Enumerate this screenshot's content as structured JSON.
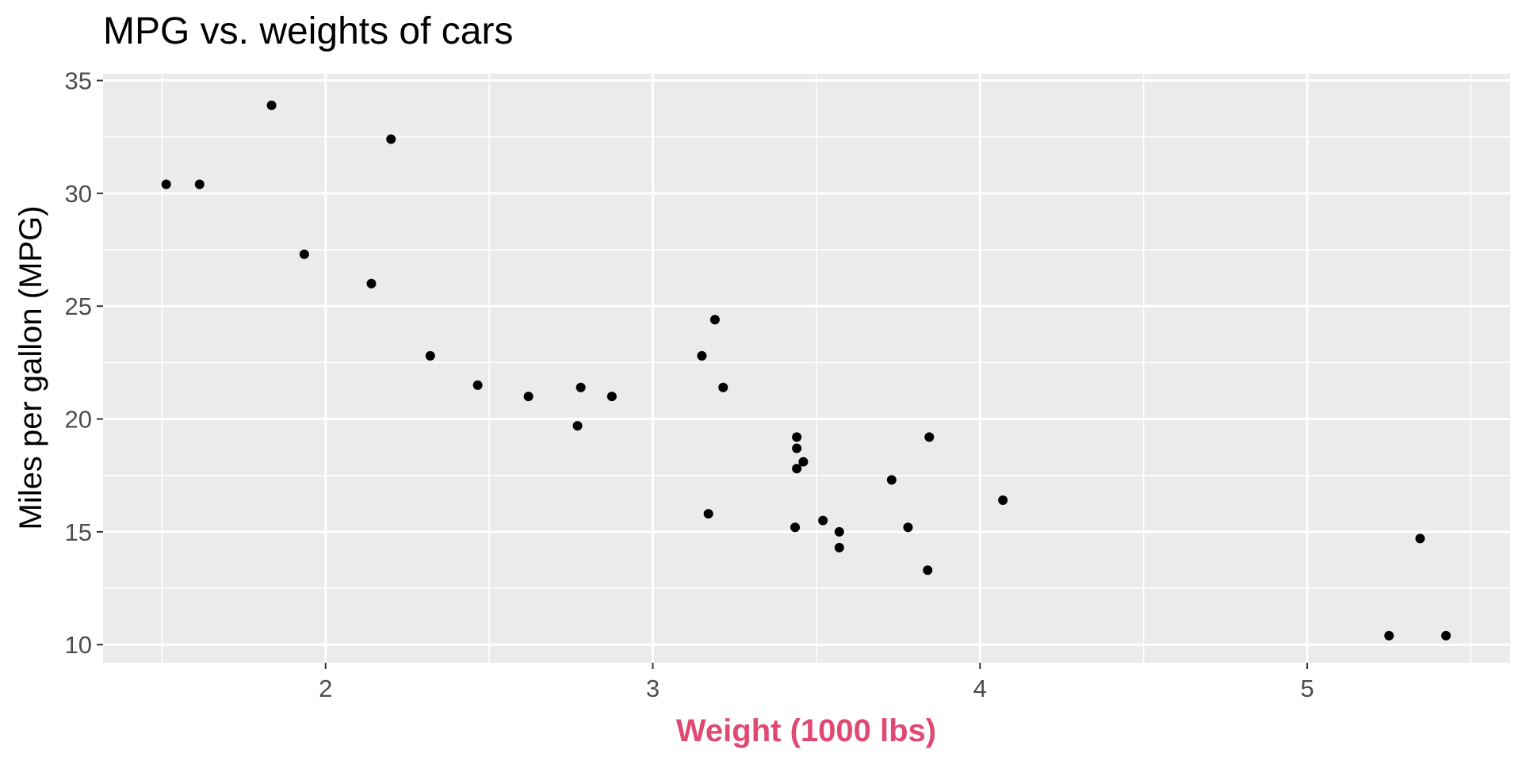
{
  "chart_data": {
    "type": "scatter",
    "title": "MPG vs. weights of cars",
    "xlabel": "Weight (1000 lbs)",
    "ylabel": "Miles per gallon (MPG)",
    "xlim": [
      1.32,
      5.62
    ],
    "ylim": [
      9.2,
      35.3
    ],
    "x_ticks": [
      2,
      3,
      4,
      5
    ],
    "x_minor_ticks": [
      1.5,
      2.5,
      3.5,
      4.5,
      5.5
    ],
    "y_ticks": [
      10,
      15,
      20,
      25,
      30,
      35
    ],
    "y_minor_ticks": [
      12.5,
      17.5,
      22.5,
      27.5,
      32.5
    ],
    "grid": true,
    "colors": {
      "panel_background": "#EBEBEB",
      "grid": "#FFFFFF",
      "points": "#000000",
      "xlabel": "#E04A72",
      "tick_label": "#4D4D4D",
      "title": "#000000"
    },
    "points": [
      {
        "x": 2.62,
        "y": 21.0
      },
      {
        "x": 2.875,
        "y": 21.0
      },
      {
        "x": 2.32,
        "y": 22.8
      },
      {
        "x": 3.215,
        "y": 21.4
      },
      {
        "x": 3.44,
        "y": 18.7
      },
      {
        "x": 3.46,
        "y": 18.1
      },
      {
        "x": 3.57,
        "y": 14.3
      },
      {
        "x": 3.19,
        "y": 24.4
      },
      {
        "x": 3.15,
        "y": 22.8
      },
      {
        "x": 3.44,
        "y": 19.2
      },
      {
        "x": 3.44,
        "y": 17.8
      },
      {
        "x": 4.07,
        "y": 16.4
      },
      {
        "x": 3.73,
        "y": 17.3
      },
      {
        "x": 3.78,
        "y": 15.2
      },
      {
        "x": 5.25,
        "y": 10.4
      },
      {
        "x": 5.424,
        "y": 10.4
      },
      {
        "x": 5.345,
        "y": 14.7
      },
      {
        "x": 2.2,
        "y": 32.4
      },
      {
        "x": 1.615,
        "y": 30.4
      },
      {
        "x": 1.835,
        "y": 33.9
      },
      {
        "x": 2.465,
        "y": 21.5
      },
      {
        "x": 3.52,
        "y": 15.5
      },
      {
        "x": 3.435,
        "y": 15.2
      },
      {
        "x": 3.84,
        "y": 13.3
      },
      {
        "x": 3.845,
        "y": 19.2
      },
      {
        "x": 1.935,
        "y": 27.3
      },
      {
        "x": 2.14,
        "y": 26.0
      },
      {
        "x": 1.513,
        "y": 30.4
      },
      {
        "x": 3.17,
        "y": 15.8
      },
      {
        "x": 2.77,
        "y": 19.7
      },
      {
        "x": 3.57,
        "y": 15.0
      },
      {
        "x": 2.78,
        "y": 21.4
      }
    ]
  }
}
